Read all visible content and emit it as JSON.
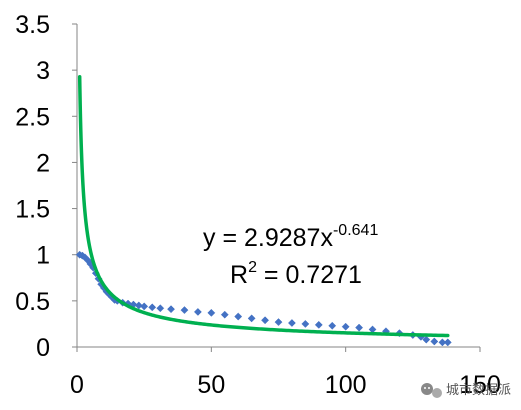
{
  "chart_data": {
    "type": "scatter",
    "title": "",
    "xlabel": "",
    "ylabel": "",
    "xlim": [
      0,
      150
    ],
    "ylim": [
      0,
      3.5
    ],
    "x_ticks": [
      "0",
      "50",
      "100",
      "150"
    ],
    "y_ticks": [
      "0",
      "0.5",
      "1",
      "1.5",
      "2",
      "2.5",
      "3",
      "3.5"
    ],
    "grid": false,
    "legend": "none",
    "series": [
      {
        "marker": "diamond",
        "color": "#4472C4",
        "points": [
          [
            1,
            1.0
          ],
          [
            2,
            0.99
          ],
          [
            3,
            0.97
          ],
          [
            4,
            0.94
          ],
          [
            5,
            0.9
          ],
          [
            6,
            0.86
          ],
          [
            7,
            0.8
          ],
          [
            8,
            0.74
          ],
          [
            9,
            0.68
          ],
          [
            10,
            0.64
          ],
          [
            11,
            0.6
          ],
          [
            12,
            0.57
          ],
          [
            13,
            0.54
          ],
          [
            14,
            0.51
          ],
          [
            15,
            0.5
          ],
          [
            17,
            0.48
          ],
          [
            19,
            0.47
          ],
          [
            21,
            0.46
          ],
          [
            23,
            0.45
          ],
          [
            25,
            0.44
          ],
          [
            28,
            0.43
          ],
          [
            31,
            0.42
          ],
          [
            35,
            0.41
          ],
          [
            40,
            0.4
          ],
          [
            45,
            0.38
          ],
          [
            50,
            0.37
          ],
          [
            55,
            0.35
          ],
          [
            60,
            0.33
          ],
          [
            65,
            0.31
          ],
          [
            70,
            0.29
          ],
          [
            75,
            0.27
          ],
          [
            80,
            0.26
          ],
          [
            85,
            0.25
          ],
          [
            90,
            0.24
          ],
          [
            95,
            0.23
          ],
          [
            100,
            0.22
          ],
          [
            105,
            0.21
          ],
          [
            110,
            0.19
          ],
          [
            115,
            0.17
          ],
          [
            120,
            0.15
          ],
          [
            125,
            0.13
          ],
          [
            128,
            0.11
          ],
          [
            130,
            0.08
          ],
          [
            133,
            0.06
          ],
          [
            136,
            0.05
          ],
          [
            138,
            0.05
          ]
        ]
      }
    ],
    "trendline": {
      "type": "power",
      "coefficient": 2.9287,
      "exponent": -0.641,
      "x_range": [
        1,
        138
      ],
      "color": "#00B050"
    },
    "annotations": {
      "equation_prefix": "y = 2.9287x",
      "equation_exponent": "-0.641",
      "r2_prefix": "R",
      "r2_exponent": "2",
      "r2_suffix": " = 0.7271"
    }
  },
  "watermark": {
    "icon": "wechat-icon",
    "text": "城市数据派"
  }
}
